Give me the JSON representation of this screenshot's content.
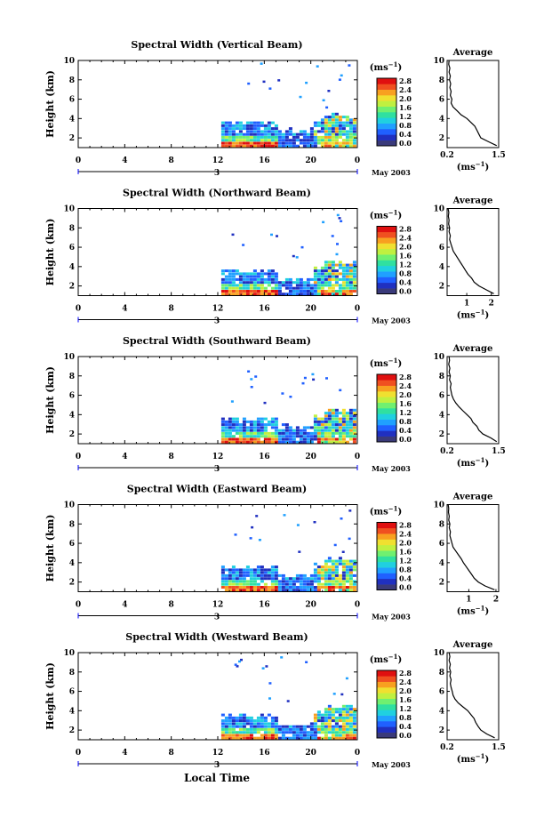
{
  "figure": {
    "time_axis_label": "Local Time",
    "unit_label": "(ms",
    "unit_exp": "−1",
    "avg_title": "Average",
    "date_label": "May 2003",
    "day_label": "3",
    "bottom_label": "Local Time"
  },
  "colors": {
    "scale": [
      "#3a3a7a",
      "#2030c0",
      "#2060ff",
      "#20a0ff",
      "#20d0e0",
      "#30e0a0",
      "#70f070",
      "#c0f040",
      "#f0e030",
      "#f8a020",
      "#f05020",
      "#e01010"
    ]
  },
  "chart_data": [
    {
      "type": "heatmap",
      "title": "Spectral Width (Vertical Beam)",
      "ylabel": "Height (km)",
      "xlabel": "",
      "xticks": [
        "0",
        "4",
        "8",
        "12",
        "16",
        "20",
        "0"
      ],
      "yticks": [
        "2",
        "4",
        "6",
        "8",
        "10"
      ],
      "xlim": [
        0,
        24
      ],
      "ylim": [
        1,
        10
      ],
      "colorbar_ticks": [
        "0.0",
        "0.4",
        "0.8",
        "1.2",
        "1.6",
        "2.0",
        "2.4",
        "2.8"
      ],
      "data_start_hour": 12.3,
      "average": {
        "xticks": [
          "0.2",
          "1.5"
        ],
        "xlim": [
          0.2,
          1.5
        ],
        "height": [
          1.2,
          1.6,
          2.0,
          2.4,
          2.8,
          3.2,
          3.6,
          4.0,
          4.4,
          4.8,
          5.2,
          5.6,
          6.0,
          6.4,
          6.8,
          7.2,
          7.6,
          8.0,
          8.4,
          8.8,
          9.2,
          9.6,
          10.0
        ],
        "value": [
          1.45,
          1.25,
          1.05,
          1.0,
          0.95,
          0.9,
          0.8,
          0.7,
          0.55,
          0.45,
          0.35,
          0.3,
          0.32,
          0.28,
          0.3,
          0.27,
          0.29,
          0.26,
          0.28,
          0.25,
          0.27,
          0.24,
          0.25
        ]
      }
    },
    {
      "type": "heatmap",
      "title": "Spectral Width (Northward Beam)",
      "ylabel": "Height (km)",
      "xlabel": "",
      "xticks": [
        "0",
        "4",
        "8",
        "12",
        "16",
        "20",
        "0"
      ],
      "yticks": [
        "2",
        "4",
        "6",
        "8",
        "10"
      ],
      "xlim": [
        0,
        24
      ],
      "ylim": [
        1,
        10
      ],
      "colorbar_ticks": [
        "0.0",
        "0.4",
        "0.8",
        "1.2",
        "1.6",
        "2.0",
        "2.4",
        "2.8"
      ],
      "data_start_hour": 12.3,
      "average": {
        "xticks": [
          "1",
          "2"
        ],
        "xlim": [
          0.2,
          2.3
        ],
        "height": [
          1.2,
          1.6,
          2.0,
          2.4,
          2.8,
          3.2,
          3.6,
          4.0,
          4.4,
          4.8,
          5.2,
          5.6,
          6.0,
          6.4,
          6.8,
          7.2,
          7.6,
          8.0,
          8.4,
          8.8,
          9.2,
          9.6,
          10.0
        ],
        "value": [
          2.1,
          1.8,
          1.5,
          1.3,
          1.2,
          1.05,
          0.95,
          0.85,
          0.75,
          0.65,
          0.55,
          0.45,
          0.4,
          0.35,
          0.3,
          0.33,
          0.28,
          0.3,
          0.26,
          0.28,
          0.25,
          0.27,
          0.24
        ]
      }
    },
    {
      "type": "heatmap",
      "title": "Spectral Width (Southward Beam)",
      "ylabel": "Height (km)",
      "xlabel": "",
      "xticks": [
        "0",
        "4",
        "8",
        "12",
        "16",
        "20",
        "0"
      ],
      "yticks": [
        "2",
        "4",
        "6",
        "8",
        "10"
      ],
      "xlim": [
        0,
        24
      ],
      "ylim": [
        1,
        10
      ],
      "colorbar_ticks": [
        "0.0",
        "0.4",
        "0.8",
        "1.2",
        "1.6",
        "2.0",
        "2.4",
        "2.8"
      ],
      "data_start_hour": 12.3,
      "average": {
        "xticks": [
          "0.2",
          "1.5"
        ],
        "xlim": [
          0.2,
          1.5
        ],
        "height": [
          1.2,
          1.6,
          2.0,
          2.4,
          2.8,
          3.2,
          3.6,
          4.0,
          4.4,
          4.8,
          5.2,
          5.6,
          6.0,
          6.4,
          6.8,
          7.2,
          7.6,
          8.0,
          8.4,
          8.8,
          9.2,
          9.6,
          10.0
        ],
        "value": [
          1.45,
          1.3,
          1.1,
          1.0,
          0.95,
          0.85,
          0.8,
          0.7,
          0.6,
          0.5,
          0.42,
          0.36,
          0.32,
          0.3,
          0.28,
          0.3,
          0.26,
          0.28,
          0.25,
          0.27,
          0.24,
          0.26,
          0.25
        ]
      }
    },
    {
      "type": "heatmap",
      "title": "Spectral Width (Eastward Beam)",
      "ylabel": "Height (km)",
      "xlabel": "",
      "xticks": [
        "0",
        "4",
        "8",
        "12",
        "16",
        "20",
        "0"
      ],
      "yticks": [
        "2",
        "4",
        "6",
        "8",
        "10"
      ],
      "xlim": [
        0,
        24
      ],
      "ylim": [
        1,
        10
      ],
      "colorbar_ticks": [
        "0.0",
        "0.4",
        "0.8",
        "1.2",
        "1.6",
        "2.0",
        "2.4",
        "2.8"
      ],
      "data_start_hour": 12.3,
      "average": {
        "xticks": [
          "1",
          "2"
        ],
        "xlim": [
          0.2,
          2.1
        ],
        "height": [
          1.2,
          1.6,
          2.0,
          2.4,
          2.8,
          3.2,
          3.6,
          4.0,
          4.4,
          4.8,
          5.2,
          5.6,
          6.0,
          6.4,
          6.8,
          7.2,
          7.6,
          8.0,
          8.4,
          8.8,
          9.2,
          9.6,
          10.0
        ],
        "value": [
          1.95,
          1.6,
          1.35,
          1.2,
          1.1,
          1.0,
          0.9,
          0.8,
          0.72,
          0.62,
          0.52,
          0.42,
          0.38,
          0.34,
          0.3,
          0.32,
          0.28,
          0.3,
          0.26,
          0.28,
          0.25,
          0.26,
          0.24
        ]
      }
    },
    {
      "type": "heatmap",
      "title": "Spectral Width (Westward Beam)",
      "ylabel": "Height (km)",
      "xlabel": "",
      "xticks": [
        "0",
        "4",
        "8",
        "12",
        "16",
        "20",
        "0"
      ],
      "yticks": [
        "2",
        "4",
        "6",
        "8",
        "10"
      ],
      "xlim": [
        0,
        24
      ],
      "ylim": [
        1,
        10
      ],
      "colorbar_ticks": [
        "0.0",
        "0.4",
        "0.8",
        "1.2",
        "1.6",
        "2.0",
        "2.4",
        "2.8"
      ],
      "data_start_hour": 12.3,
      "average": {
        "xticks": [
          "0.2",
          "1.5"
        ],
        "xlim": [
          0.2,
          1.5
        ],
        "height": [
          1.2,
          1.6,
          2.0,
          2.4,
          2.8,
          3.2,
          3.6,
          4.0,
          4.4,
          4.8,
          5.2,
          5.6,
          6.0,
          6.4,
          6.8,
          7.2,
          7.6,
          8.0,
          8.4,
          8.8,
          9.2,
          9.6,
          10.0
        ],
        "value": [
          1.4,
          1.2,
          1.05,
          0.98,
          0.92,
          0.88,
          0.8,
          0.72,
          0.6,
          0.48,
          0.4,
          0.35,
          0.33,
          0.3,
          0.28,
          0.3,
          0.27,
          0.29,
          0.26,
          0.28,
          0.25,
          0.27,
          0.25
        ]
      }
    }
  ]
}
